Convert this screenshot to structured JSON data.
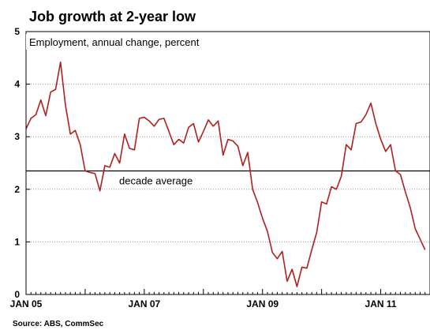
{
  "chart_data": {
    "type": "line",
    "title": "Job growth at 2-year low",
    "subtitle": "Employment, annual change, percent",
    "source": "Source: ABS, CommSec",
    "xlabel": "",
    "ylabel": "",
    "xlim": [
      "2005-01",
      "2011-10"
    ],
    "ylim": [
      0,
      5
    ],
    "y_ticks": [
      0,
      1,
      2,
      3,
      4,
      5
    ],
    "x_ticks": [
      {
        "date": "2005-01",
        "label": "JAN 05"
      },
      {
        "date": "2007-01",
        "label": "JAN 07"
      },
      {
        "date": "2009-01",
        "label": "JAN 09"
      },
      {
        "date": "2011-01",
        "label": "JAN 11"
      }
    ],
    "grid": true,
    "colors": {
      "line": "#b0201e",
      "reference": "#000000",
      "grid": "#9a9a9a",
      "frame": "#000000"
    },
    "reference_lines": [
      {
        "y": 2.35,
        "label": "decade average"
      }
    ],
    "series": [
      {
        "x": [
          "2005-01",
          "2005-02",
          "2005-03",
          "2005-04",
          "2005-05",
          "2005-06",
          "2005-07",
          "2005-08",
          "2005-09",
          "2005-10",
          "2005-11",
          "2005-12",
          "2006-01",
          "2006-02",
          "2006-03",
          "2006-04",
          "2006-05",
          "2006-06",
          "2006-07",
          "2006-08",
          "2006-09",
          "2006-10",
          "2006-11",
          "2006-12",
          "2007-01",
          "2007-02",
          "2007-03",
          "2007-04",
          "2007-05",
          "2007-06",
          "2007-07",
          "2007-08",
          "2007-09",
          "2007-10",
          "2007-11",
          "2007-12",
          "2008-01",
          "2008-02",
          "2008-03",
          "2008-04",
          "2008-05",
          "2008-06",
          "2008-07",
          "2008-08",
          "2008-09",
          "2008-10",
          "2008-11",
          "2008-12",
          "2009-01",
          "2009-02",
          "2009-03",
          "2009-04",
          "2009-05",
          "2009-06",
          "2009-07",
          "2009-08",
          "2009-09",
          "2009-10",
          "2009-11",
          "2009-12",
          "2010-01",
          "2010-02",
          "2010-03",
          "2010-04",
          "2010-05",
          "2010-06",
          "2010-07",
          "2010-08",
          "2010-09",
          "2010-10",
          "2010-11",
          "2010-12",
          "2011-01",
          "2011-02",
          "2011-03",
          "2011-04",
          "2011-05",
          "2011-06",
          "2011-07",
          "2011-08",
          "2011-09",
          "2011-10"
        ],
        "y": [
          3.15,
          3.35,
          3.42,
          3.7,
          3.4,
          3.85,
          3.9,
          4.42,
          3.6,
          3.05,
          3.12,
          2.85,
          2.35,
          2.32,
          2.3,
          1.97,
          2.45,
          2.42,
          2.68,
          2.5,
          3.05,
          2.78,
          2.75,
          3.35,
          3.37,
          3.3,
          3.2,
          3.33,
          3.35,
          3.1,
          2.85,
          2.95,
          2.88,
          3.18,
          3.25,
          2.9,
          3.1,
          3.32,
          3.2,
          3.3,
          2.65,
          2.95,
          2.92,
          2.82,
          2.45,
          2.7,
          2.0,
          1.75,
          1.45,
          1.2,
          0.8,
          0.68,
          0.82,
          0.25,
          0.48,
          0.15,
          0.52,
          0.5,
          0.85,
          1.18,
          1.76,
          1.72,
          2.05,
          2.0,
          2.25,
          2.85,
          2.75,
          3.25,
          3.28,
          3.42,
          3.64,
          3.25,
          2.95,
          2.72,
          2.85,
          2.35,
          2.28,
          1.95,
          1.65,
          1.25,
          1.05,
          0.85
        ]
      }
    ]
  }
}
